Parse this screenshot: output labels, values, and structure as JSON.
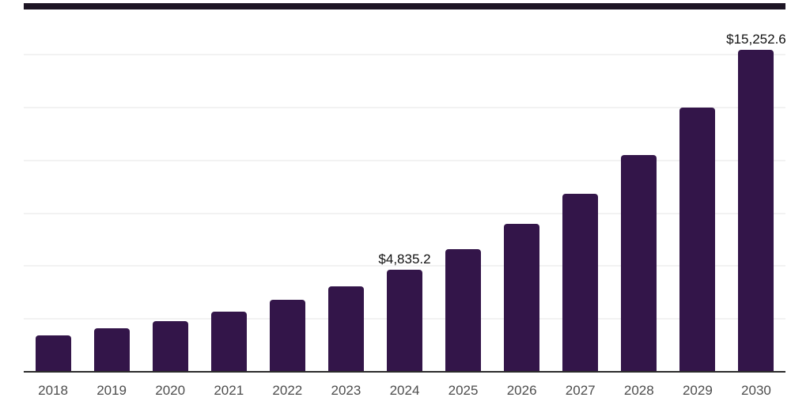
{
  "chart_data": {
    "type": "bar",
    "title": "",
    "xlabel": "",
    "ylabel": "",
    "categories": [
      "2018",
      "2019",
      "2020",
      "2021",
      "2022",
      "2023",
      "2024",
      "2025",
      "2026",
      "2027",
      "2028",
      "2029",
      "2030"
    ],
    "values": [
      1720,
      2060,
      2400,
      2850,
      3400,
      4040,
      4835.2,
      5800,
      7000,
      8420,
      10250,
      12500,
      15252.6
    ],
    "data_labels": {
      "2024": "$4,835.2",
      "2030": "$15,252.6"
    },
    "ylim": [
      0,
      17600
    ],
    "gridline_step": 2500,
    "grid": true,
    "y_axis_labels_visible": false,
    "legend_position": "none"
  },
  "colors": {
    "background": "#ffffff",
    "bar": "#331549",
    "axis_line": "#2b2b2b",
    "gridline": "#f2f2f2",
    "top_accent": "#1d1524",
    "data_label": "#111111",
    "year_label": "#4d4d4d"
  }
}
